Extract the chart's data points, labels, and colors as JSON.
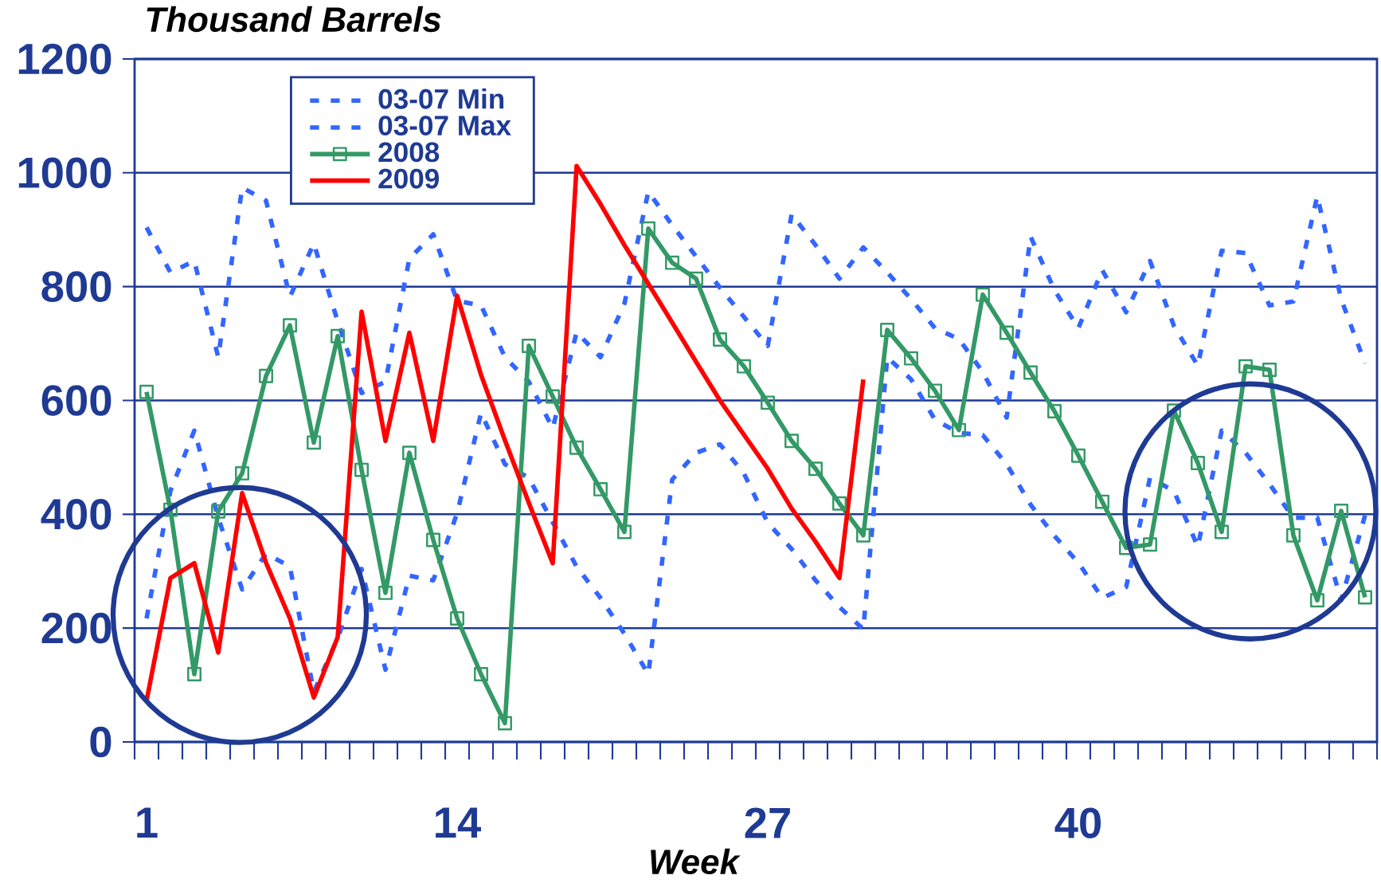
{
  "chart_data": {
    "type": "line",
    "ylabel": "Thousand Barrels",
    "xlabel": "Week",
    "x": [
      1,
      2,
      3,
      4,
      5,
      6,
      7,
      8,
      9,
      10,
      11,
      12,
      13,
      14,
      15,
      16,
      17,
      18,
      19,
      20,
      21,
      22,
      23,
      24,
      25,
      26,
      27,
      28,
      29,
      30,
      31,
      32,
      33,
      34,
      35,
      36,
      37,
      38,
      39,
      40,
      41,
      42,
      43,
      44,
      45,
      46,
      47,
      48,
      49,
      50,
      51,
      52
    ],
    "xlim": [
      0.5,
      52.5
    ],
    "xticks": [
      1,
      14,
      27,
      40
    ],
    "ylim": [
      0,
      1200
    ],
    "yticks": [
      0,
      200,
      400,
      600,
      800,
      1000,
      1200
    ],
    "grid": "y",
    "legend": "top left",
    "series": [
      {
        "name": "03-07 Min",
        "color": "#3366ff",
        "line_style": "dotted",
        "marker": "none",
        "values": [
          217,
          441,
          547,
          394,
          268,
          331,
          308,
          88,
          182,
          304,
          127,
          292,
          284,
          402,
          578,
          488,
          464,
          386,
          308,
          253,
          190,
          119,
          461,
          508,
          523,
          472,
          385,
          339,
          284,
          237,
          198,
          676,
          637,
          566,
          543,
          539,
          488,
          417,
          362,
          315,
          253,
          272,
          464,
          441,
          343,
          547,
          508,
          453,
          394,
          394,
          249,
          398
        ]
      },
      {
        "name": "03-07 Max",
        "color": "#3366ff",
        "line_style": "dotted",
        "marker": "none",
        "values": [
          904,
          825,
          845,
          676,
          974,
          951,
          782,
          876,
          739,
          613,
          633,
          849,
          892,
          775,
          767,
          676,
          633,
          551,
          720,
          676,
          770,
          967,
          908,
          853,
          798,
          747,
          696,
          927,
          873,
          814,
          869,
          825,
          778,
          727,
          708,
          650,
          570,
          888,
          794,
          727,
          829,
          755,
          845,
          731,
          661,
          863,
          859,
          767,
          774,
          959,
          778,
          665
        ]
      },
      {
        "name": "2008",
        "color": "#339966",
        "line_style": "solid",
        "marker": "square",
        "values": [
          615,
          408,
          119,
          405,
          472,
          643,
          732,
          526,
          713,
          478,
          262,
          508,
          355,
          217,
          119,
          33,
          696,
          607,
          517,
          444,
          369,
          902,
          842,
          814,
          707,
          660,
          596,
          529,
          480,
          419,
          363,
          724,
          674,
          617,
          548,
          786,
          719,
          649,
          581,
          503,
          422,
          341,
          347,
          582,
          490,
          369,
          660,
          654,
          363,
          249,
          406,
          254
        ]
      },
      {
        "name": "2009",
        "color": "#ff0000",
        "line_style": "solid",
        "marker": "none",
        "values": [
          72,
          288,
          314,
          157,
          437,
          315,
          217,
          78,
          184,
          756,
          529,
          719,
          529,
          784,
          645,
          530,
          420,
          314,
          1012,
          945,
          873,
          805,
          737,
          668,
          600,
          540,
          480,
          410,
          352,
          288,
          637,
          null,
          null,
          null,
          null,
          null,
          null,
          null,
          null,
          null,
          null,
          null,
          null,
          null,
          null,
          null,
          null,
          null,
          null,
          null,
          null,
          null
        ]
      }
    ]
  }
}
